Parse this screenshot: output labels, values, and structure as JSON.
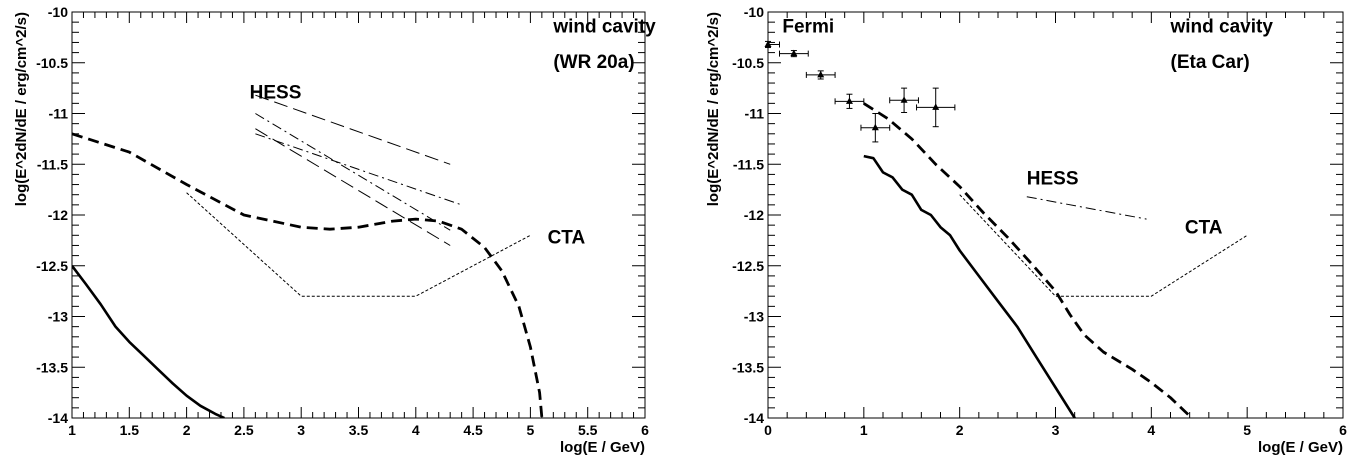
{
  "chart_data": [
    {
      "type": "line",
      "xlabel": "log(E / GeV)",
      "ylabel": "log(E^2dN/dE / erg/cm^2/s)",
      "xlim": [
        1,
        6
      ],
      "ylim": [
        -14,
        -10
      ],
      "xticks": [
        1,
        1.5,
        2,
        2.5,
        3,
        3.5,
        4,
        4.5,
        5,
        5.5,
        6
      ],
      "xtick_labels": [
        "1",
        "1.5",
        "2",
        "2.5",
        "3",
        "3.5",
        "4",
        "4.5",
        "5",
        "5.5",
        "6"
      ],
      "yticks": [
        -10,
        -10.5,
        -11,
        -11.5,
        -12,
        -12.5,
        -13,
        -13.5,
        -14
      ],
      "ytick_labels": [
        "-10",
        "-10.5",
        "-11",
        "-11.5",
        "-12",
        "-12.5",
        "-13",
        "-13.5",
        "-14"
      ],
      "grid": false,
      "annotations": [
        {
          "text": "wind cavity",
          "x": 5.2,
          "y": -10.2
        },
        {
          "text": "(WR 20a)",
          "x": 5.2,
          "y": -10.55
        },
        {
          "text": "HESS",
          "x": 2.55,
          "y": -10.85
        },
        {
          "text": "CTA",
          "x": 5.15,
          "y": -12.28
        }
      ],
      "series": [
        {
          "style": "solid",
          "width": 2.6,
          "x": [
            1,
            1.12,
            1.25,
            1.38,
            1.5,
            1.62,
            1.75,
            1.88,
            2.0,
            2.12,
            2.25,
            2.33
          ],
          "y": [
            -12.5,
            -12.68,
            -12.88,
            -13.1,
            -13.25,
            -13.38,
            -13.52,
            -13.66,
            -13.78,
            -13.88,
            -13.96,
            -14.0
          ]
        },
        {
          "style": "thick-dash",
          "width": 2.8,
          "x": [
            1,
            1.5,
            2.0,
            2.5,
            3.0,
            3.25,
            3.5,
            3.8,
            4.0,
            4.2,
            4.4,
            4.6,
            4.75,
            4.9,
            5.0,
            5.08,
            5.1
          ],
          "y": [
            -11.2,
            -11.38,
            -11.7,
            -12.0,
            -12.12,
            -12.14,
            -12.12,
            -12.06,
            -12.04,
            -12.06,
            -12.14,
            -12.32,
            -12.55,
            -12.9,
            -13.3,
            -13.75,
            -14.0
          ]
        },
        {
          "style": "dotted",
          "width": 1.0,
          "x": [
            2.0,
            3.0,
            4.0,
            5.0
          ],
          "y": [
            -11.78,
            -12.8,
            -12.8,
            -12.2
          ]
        },
        {
          "style": "dash-dot",
          "width": 1.0,
          "x": [
            2.6,
            4.3
          ],
          "y": [
            -11.0,
            -12.15
          ]
        },
        {
          "style": "dash-dot",
          "width": 1.0,
          "x": [
            2.6,
            4.4
          ],
          "y": [
            -11.2,
            -11.9
          ]
        },
        {
          "style": "long-dash",
          "width": 1.0,
          "x": [
            2.6,
            4.3
          ],
          "y": [
            -11.15,
            -12.3
          ]
        },
        {
          "style": "long-dash",
          "width": 1.0,
          "x": [
            2.6,
            4.3
          ],
          "y": [
            -10.82,
            -11.5
          ]
        }
      ]
    },
    {
      "type": "line",
      "xlabel": "log(E / GeV)",
      "ylabel": "log(E^2dN/dE / erg/cm^2/s)",
      "xlim": [
        0,
        6
      ],
      "ylim": [
        -14,
        -10
      ],
      "xticks": [
        0,
        1,
        2,
        3,
        4,
        5,
        6
      ],
      "xtick_labels": [
        "0",
        "1",
        "2",
        "3",
        "4",
        "5",
        "6"
      ],
      "yticks": [
        -10,
        -10.5,
        -11,
        -11.5,
        -12,
        -12.5,
        -13,
        -13.5,
        -14
      ],
      "ytick_labels": [
        "-10",
        "-10.5",
        "-11",
        "-11.5",
        "-12",
        "-12.5",
        "-13",
        "-13.5",
        "-14"
      ],
      "grid": false,
      "annotations": [
        {
          "text": "Fermi",
          "x": 0.15,
          "y": -10.2
        },
        {
          "text": "wind cavity",
          "x": 4.2,
          "y": -10.2
        },
        {
          "text": "(Eta Car)",
          "x": 4.2,
          "y": -10.55
        },
        {
          "text": "HESS",
          "x": 2.7,
          "y": -11.7
        },
        {
          "text": "CTA",
          "x": 4.35,
          "y": -12.18
        }
      ],
      "points": {
        "name": "Fermi",
        "x": [
          0.0,
          0.27,
          0.55,
          0.85,
          1.12,
          1.42,
          1.75
        ],
        "y": [
          -10.32,
          -10.41,
          -10.62,
          -10.88,
          -11.14,
          -10.87,
          -10.94
        ],
        "xerr": [
          0.12,
          0.15,
          0.15,
          0.15,
          0.15,
          0.15,
          0.2
        ],
        "yerr": [
          0.03,
          0.03,
          0.04,
          0.07,
          0.14,
          0.12,
          0.19
        ]
      },
      "series": [
        {
          "style": "solid",
          "width": 2.6,
          "x": [
            1.0,
            1.1,
            1.2,
            1.3,
            1.4,
            1.5,
            1.6,
            1.7,
            1.8,
            1.9,
            2.0,
            2.2,
            2.4,
            2.6,
            2.8,
            3.0,
            3.2,
            3.35
          ],
          "y": [
            -11.42,
            -11.44,
            -11.58,
            -11.63,
            -11.75,
            -11.8,
            -11.95,
            -12.0,
            -12.12,
            -12.2,
            -12.35,
            -12.6,
            -12.85,
            -13.1,
            -13.4,
            -13.7,
            -14.0,
            -14.3
          ]
        },
        {
          "style": "thick-dash",
          "width": 2.8,
          "x": [
            1.0,
            1.25,
            1.5,
            1.75,
            2.0,
            2.25,
            2.5,
            2.75,
            3.0,
            3.15,
            3.3,
            3.5,
            3.8,
            4.0,
            4.2,
            4.4
          ],
          "y": [
            -10.9,
            -11.05,
            -11.25,
            -11.5,
            -11.72,
            -11.98,
            -12.22,
            -12.48,
            -12.75,
            -12.98,
            -13.18,
            -13.35,
            -13.52,
            -13.65,
            -13.8,
            -13.98
          ]
        },
        {
          "style": "dotted",
          "width": 1.0,
          "x": [
            2.0,
            3.0,
            4.0,
            5.0
          ],
          "y": [
            -11.8,
            -12.8,
            -12.8,
            -12.2
          ]
        },
        {
          "style": "dash-dot",
          "width": 1.0,
          "x": [
            2.7,
            3.95
          ],
          "y": [
            -11.82,
            -12.04
          ]
        }
      ]
    }
  ]
}
